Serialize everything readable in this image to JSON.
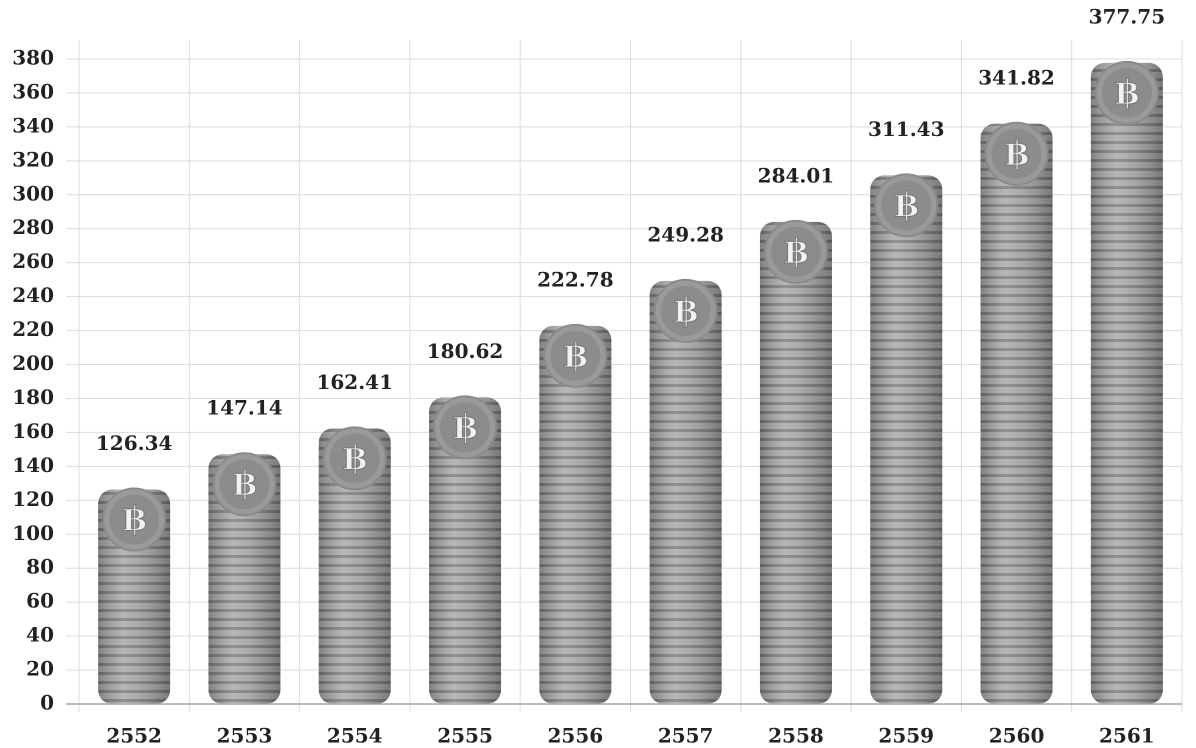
{
  "chart_data": {
    "type": "bar",
    "categories": [
      "2552",
      "2553",
      "2554",
      "2555",
      "2556",
      "2557",
      "2558",
      "2559",
      "2560",
      "2561"
    ],
    "values": [
      126.34,
      147.14,
      162.41,
      180.62,
      222.78,
      249.28,
      284.01,
      311.43,
      341.82,
      377.75
    ],
    "color": "#a6a6a6",
    "coin_symbol": "฿",
    "ylim": [
      0,
      380
    ],
    "yticks": [
      0,
      20,
      40,
      60,
      80,
      100,
      120,
      140,
      160,
      180,
      200,
      220,
      240,
      260,
      280,
      300,
      320,
      340,
      360,
      380
    ],
    "grid": true
  }
}
